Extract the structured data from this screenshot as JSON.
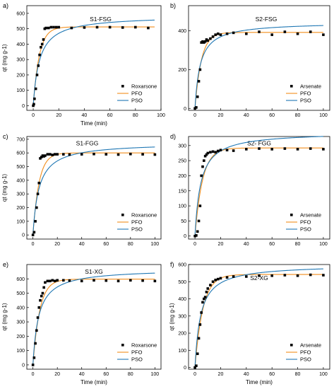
{
  "colors": {
    "data": "#000000",
    "pfo": "#f28e1c",
    "pso": "#1f77b4",
    "axis": "#000000"
  },
  "chart_data": [
    {
      "type": "scatter",
      "panel_label": "a)",
      "title": "S1-FSG",
      "xlabel": "Time (min)",
      "ylabel": "qt (mg g-1)",
      "xlim": [
        -5,
        100
      ],
      "ylim": [
        -30,
        650
      ],
      "x_ticks": [
        0,
        20,
        40,
        60,
        80,
        100
      ],
      "y_ticks": [
        0,
        100,
        200,
        300,
        400,
        500,
        600
      ],
      "legend_position": "bottom-right",
      "series": [
        {
          "name": "Roxarsone",
          "kind": "scatter",
          "x": [
            0,
            0.5,
            1,
            2,
            3,
            4,
            5,
            6,
            7,
            8,
            9,
            10,
            12,
            14,
            16,
            18,
            20,
            30,
            40,
            50,
            60,
            70,
            80,
            90
          ],
          "y": [
            0,
            10,
            45,
            110,
            200,
            260,
            330,
            380,
            400,
            430,
            500,
            505,
            505,
            510,
            510,
            510,
            510,
            505,
            508,
            510,
            510,
            508,
            510,
            505
          ]
        },
        {
          "name": "PFO",
          "kind": "line",
          "qe": 512,
          "k": 0.21
        },
        {
          "name": "PSO",
          "kind": "line",
          "qe": 585,
          "k": 0.00035
        }
      ]
    },
    {
      "type": "scatter",
      "panel_label": "b)",
      "title": "S2-FSG",
      "xlabel": "",
      "ylabel": "",
      "xlim": [
        -5,
        105
      ],
      "ylim": [
        -10,
        530
      ],
      "x_ticks": [
        0,
        20,
        40,
        60,
        80,
        100
      ],
      "y_ticks": [
        0,
        200,
        400
      ],
      "legend_position": "bottom-right",
      "series": [
        {
          "name": "Arsenate",
          "kind": "scatter",
          "x": [
            0,
            1,
            2,
            3,
            4,
            5,
            6,
            7,
            8,
            9,
            10,
            12,
            14,
            16,
            18,
            20,
            25,
            30,
            40,
            50,
            60,
            70,
            80,
            90,
            100
          ],
          "y": [
            0,
            5,
            60,
            140,
            200,
            340,
            345,
            340,
            345,
            355,
            350,
            360,
            370,
            380,
            385,
            380,
            385,
            390,
            385,
            395,
            380,
            395,
            385,
            395,
            380
          ]
        },
        {
          "name": "PFO",
          "kind": "line",
          "qe": 392,
          "k": 0.2
        },
        {
          "name": "PSO",
          "kind": "line",
          "qe": 445,
          "k": 0.00055
        }
      ]
    },
    {
      "type": "scatter",
      "panel_label": "c)",
      "title": "S1-FGG",
      "xlabel": "",
      "ylabel": "qt (mg g-1)",
      "xlim": [
        -5,
        105
      ],
      "ylim": [
        -30,
        720
      ],
      "x_ticks": [
        0,
        20,
        40,
        60,
        80,
        100
      ],
      "y_ticks": [
        0,
        100,
        200,
        300,
        400,
        500,
        600,
        700
      ],
      "legend_position": "bottom-right",
      "series": [
        {
          "name": "Roxarsone",
          "kind": "scatter",
          "x": [
            0,
            1,
            2,
            3,
            4,
            5,
            6,
            7,
            8,
            9,
            10,
            12,
            14,
            16,
            18,
            20,
            25,
            30,
            40,
            50,
            60,
            70,
            80,
            90,
            100
          ],
          "y": [
            0,
            20,
            100,
            200,
            300,
            380,
            560,
            570,
            580,
            575,
            580,
            590,
            590,
            585,
            590,
            590,
            590,
            588,
            590,
            592,
            590,
            588,
            592,
            590,
            588
          ]
        },
        {
          "name": "PFO",
          "kind": "line",
          "qe": 600,
          "k": 0.2
        },
        {
          "name": "PSO",
          "kind": "line",
          "qe": 675,
          "k": 0.0003
        }
      ]
    },
    {
      "type": "scatter",
      "panel_label": "d)",
      "title": "S2- FGG",
      "xlabel": "",
      "ylabel": "",
      "xlim": [
        -5,
        105
      ],
      "ylim": [
        -10,
        330
      ],
      "x_ticks": [
        0,
        20,
        40,
        60,
        80,
        100
      ],
      "y_ticks": [
        0,
        50,
        100,
        150,
        200,
        250,
        300
      ],
      "legend_position": "bottom-right",
      "series": [
        {
          "name": "Arsenate",
          "kind": "scatter",
          "x": [
            0,
            1,
            2,
            3,
            4,
            5,
            6,
            7,
            8,
            9,
            10,
            12,
            14,
            16,
            18,
            20,
            25,
            30,
            40,
            50,
            60,
            70,
            80,
            90,
            100
          ],
          "y": [
            0,
            2,
            15,
            50,
            100,
            200,
            230,
            250,
            265,
            270,
            275,
            278,
            280,
            278,
            282,
            285,
            285,
            283,
            288,
            290,
            288,
            290,
            288,
            290,
            288
          ]
        },
        {
          "name": "PFO",
          "kind": "line",
          "qe": 292,
          "k": 0.17
        },
        {
          "name": "PSO",
          "kind": "line",
          "qe": 345,
          "k": 0.00065
        }
      ]
    },
    {
      "type": "scatter",
      "panel_label": "e)",
      "title": "S1-XG",
      "xlabel": "Time (min)",
      "ylabel": "qt (mg g-1)",
      "xlim": [
        -5,
        105
      ],
      "ylim": [
        -30,
        700
      ],
      "x_ticks": [
        0,
        20,
        40,
        60,
        80,
        100
      ],
      "y_ticks": [
        0,
        100,
        200,
        300,
        400,
        500,
        600
      ],
      "legend_position": "bottom-right",
      "series": [
        {
          "name": "Roxarsone",
          "kind": "scatter",
          "x": [
            0,
            1,
            2,
            3,
            4,
            5,
            6,
            7,
            8,
            9,
            10,
            12,
            14,
            16,
            18,
            20,
            25,
            30,
            40,
            50,
            60,
            70,
            80,
            90,
            100
          ],
          "y": [
            0,
            50,
            150,
            240,
            330,
            400,
            450,
            480,
            500,
            540,
            575,
            585,
            585,
            590,
            585,
            590,
            590,
            588,
            585,
            590,
            588,
            585,
            590,
            588,
            585
          ]
        },
        {
          "name": "PFO",
          "kind": "line",
          "qe": 598,
          "k": 0.18
        },
        {
          "name": "PSO",
          "kind": "line",
          "qe": 670,
          "k": 0.00032
        }
      ]
    },
    {
      "type": "scatter",
      "panel_label": "f)",
      "title": "S2-XG",
      "xlabel": "Time (min)",
      "ylabel": "qt (mg g-1)",
      "xlim": [
        -5,
        105
      ],
      "ylim": [
        -10,
        600
      ],
      "x_ticks": [
        0,
        20,
        40,
        60,
        80,
        100
      ],
      "y_ticks": [
        0,
        100,
        200,
        300,
        400,
        500,
        600
      ],
      "legend_position": "bottom-right",
      "series": [
        {
          "name": "Arsenate",
          "kind": "scatter",
          "x": [
            0,
            1,
            2,
            3,
            4,
            5,
            6,
            7,
            8,
            9,
            10,
            12,
            14,
            16,
            18,
            20,
            25,
            30,
            40,
            50,
            60,
            70,
            80,
            90,
            100
          ],
          "y": [
            0,
            10,
            80,
            170,
            250,
            320,
            380,
            400,
            410,
            440,
            460,
            480,
            500,
            510,
            515,
            520,
            525,
            530,
            530,
            535,
            535,
            538,
            535,
            540,
            538
          ]
        },
        {
          "name": "PFO",
          "kind": "line",
          "qe": 542,
          "k": 0.16
        },
        {
          "name": "PSO",
          "kind": "line",
          "qe": 600,
          "k": 0.00038
        }
      ]
    }
  ]
}
